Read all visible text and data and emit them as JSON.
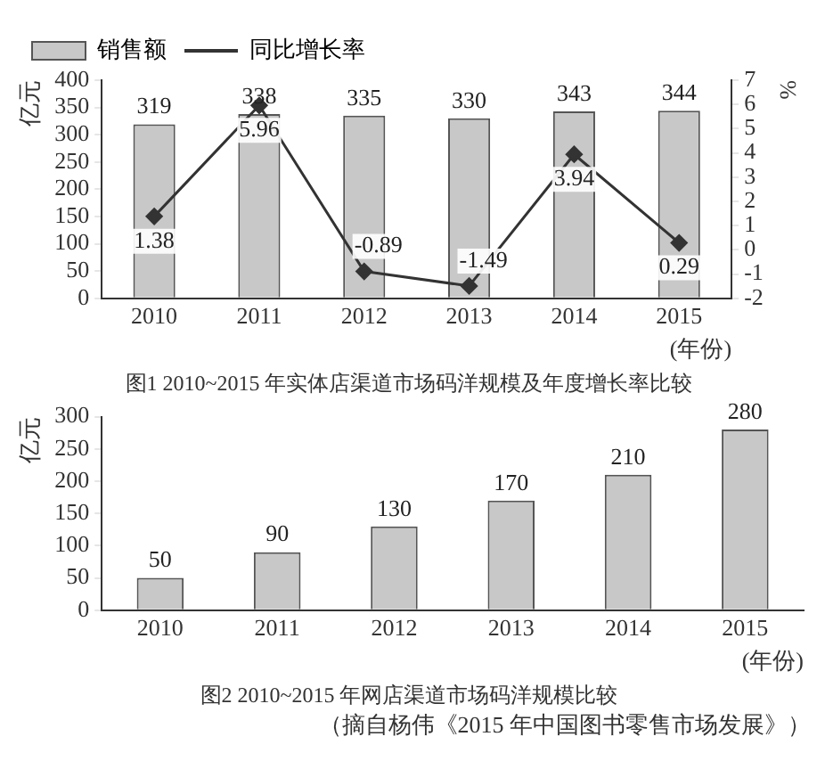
{
  "chart_data": [
    {
      "type": "bar",
      "title": "图1 2010~2015 年实体店渠道市场码洋规模及年度增长率比较",
      "categories": [
        "2010",
        "2011",
        "2012",
        "2013",
        "2014",
        "2015"
      ],
      "series": [
        {
          "name": "销售额",
          "type": "bar",
          "color": "#c8c8c8",
          "values": [
            319,
            338,
            335,
            330,
            343,
            344
          ]
        },
        {
          "name": "同比增长率",
          "type": "line",
          "axis": "y2",
          "color": "#333333",
          "marker": "diamond",
          "values": [
            1.38,
            5.96,
            -0.89,
            -1.49,
            3.94,
            0.29
          ]
        }
      ],
      "ylim": [
        0,
        400
      ],
      "yticks": [
        0,
        50,
        100,
        150,
        200,
        250,
        300,
        350,
        400
      ],
      "y2lim": [
        -2,
        7
      ],
      "y2ticks": [
        -2,
        -1,
        0,
        1,
        2,
        3,
        4,
        5,
        6,
        7
      ],
      "ylabel": "亿元",
      "y2label": "%",
      "xlabel": "(年份)",
      "legend": "top left",
      "data_labels": true
    },
    {
      "type": "bar",
      "title": "图2 2010~2015 年网店渠道市场码洋规模比较",
      "categories": [
        "2010",
        "2011",
        "2012",
        "2013",
        "2014",
        "2015"
      ],
      "values": [
        50,
        90,
        130,
        170,
        210,
        280
      ],
      "color": "#c8c8c8",
      "ylim": [
        0,
        300
      ],
      "yticks": [
        0,
        50,
        100,
        150,
        200,
        250,
        300
      ],
      "ylabel": "亿元",
      "xlabel": "(年份)",
      "data_labels": true,
      "annotations": [
        "（摘自杨伟《2015 年中国图书零售市场发展》）"
      ]
    }
  ]
}
